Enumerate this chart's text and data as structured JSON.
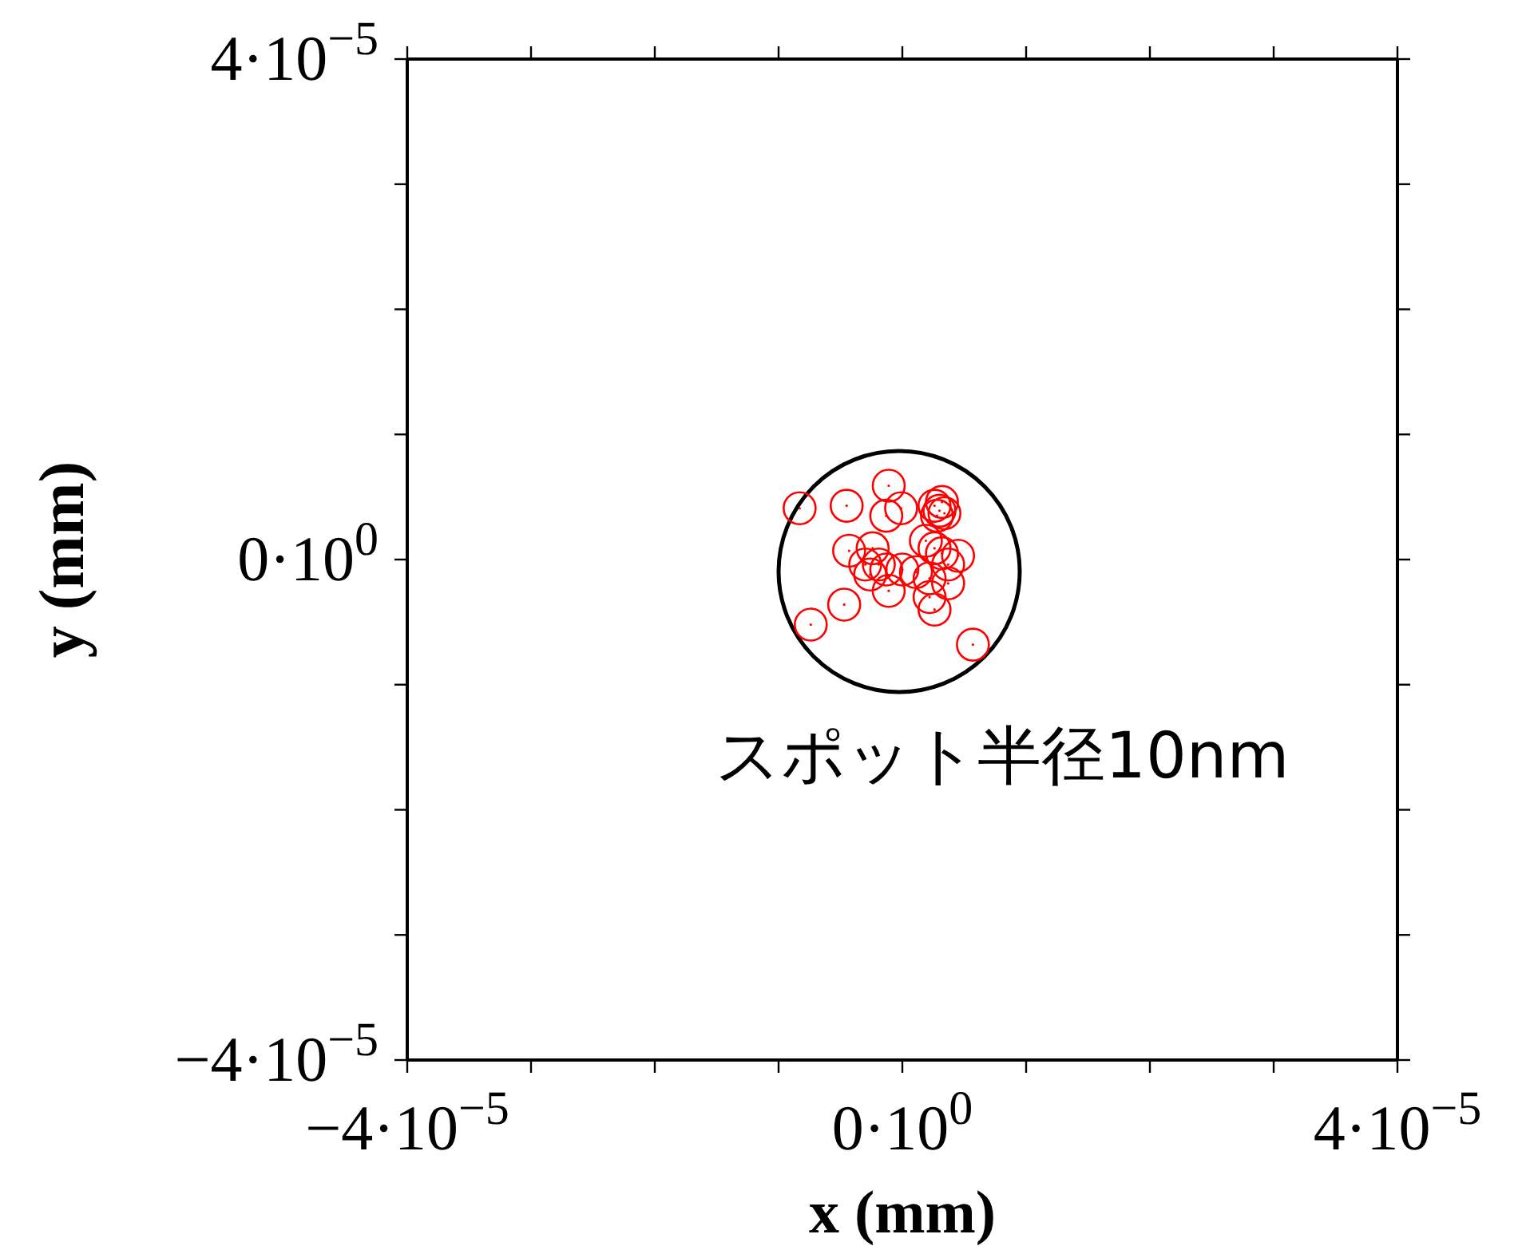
{
  "chart_data": {
    "type": "scatter",
    "xlabel": "x (mm)",
    "ylabel": "y (mm)",
    "xlim": [
      -4e-05,
      4e-05
    ],
    "ylim": [
      -4e-05,
      4e-05
    ],
    "xticks": [
      {
        "value": -4e-05,
        "label": "−4·10$^{−5}$"
      },
      {
        "value": -3e-05,
        "label": null
      },
      {
        "value": -2e-05,
        "label": null
      },
      {
        "value": -1e-05,
        "label": null
      },
      {
        "value": 0,
        "label": "0·10$^{0}$"
      },
      {
        "value": 1e-05,
        "label": null
      },
      {
        "value": 2e-05,
        "label": null
      },
      {
        "value": 3e-05,
        "label": null
      },
      {
        "value": 4e-05,
        "label": "4·10$^{−5}$"
      }
    ],
    "yticks": [
      {
        "value": -4e-05,
        "label": "−4·10$^{−5}$"
      },
      {
        "value": -3e-05,
        "label": null
      },
      {
        "value": -2e-05,
        "label": null
      },
      {
        "value": -1e-05,
        "label": null
      },
      {
        "value": 0,
        "label": "0·10$^{0}$"
      },
      {
        "value": 1e-05,
        "label": null
      },
      {
        "value": 2e-05,
        "label": null
      },
      {
        "value": 3e-05,
        "label": null
      },
      {
        "value": 4e-05,
        "label": "4·10$^{−5}$"
      }
    ],
    "grid": false,
    "marker": "circle",
    "series": [
      {
        "color": "#ff0000",
        "x": [
          -8.3e-06,
          -4.5e-06,
          -1.1e-06,
          -1.3e-06,
          -1e-07,
          2.6e-06,
          3e-06,
          3.2e-06,
          3.4e-06,
          2.8e-06,
          1.9e-06,
          -4.3e-06,
          -2.4e-06,
          2.6e-06,
          3.2e-06,
          4.5e-06,
          3.7e-06,
          -3e-06,
          -1.9e-06,
          -1.3e-06,
          0,
          1.1e-06,
          -2.6e-06,
          -1.1e-06,
          2.2e-06,
          3.7e-06,
          2.2e-06,
          2.6e-06,
          -4.7e-06,
          -7.4e-06,
          5.7e-06
        ],
        "values": [
          4.1e-06,
          4.3e-06,
          5.9e-06,
          3.5e-06,
          4.1e-06,
          4.3e-06,
          3.9e-06,
          4.6e-06,
          3.7e-06,
          3.5e-06,
          1.5e-06,
          7e-07,
          9e-07,
          9e-07,
          5e-07,
          3e-07,
          -4e-07,
          -4e-07,
          -4e-07,
          -8e-07,
          -8e-07,
          -1e-06,
          -1.2e-06,
          -2.5e-06,
          -1.5e-06,
          -1.9e-06,
          -3e-06,
          -4e-06,
          -3.6e-06,
          -5.2e-06,
          -6.8e-06
        ]
      }
    ],
    "annotations": [
      "スポット半径10nm"
    ]
  }
}
